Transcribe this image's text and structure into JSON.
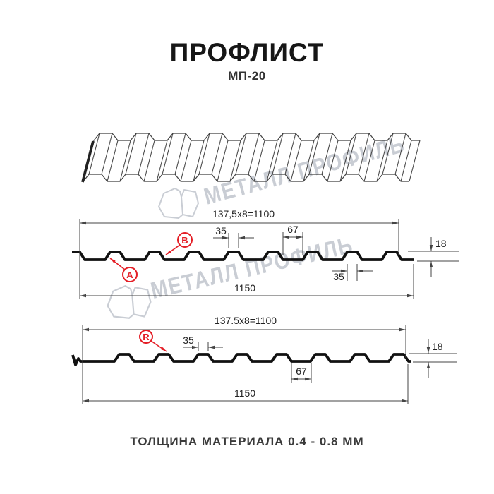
{
  "header": {
    "title": "ПРОФЛИСТ",
    "subtitle": "МП-20"
  },
  "watermark": {
    "text": "МЕТАЛЛ ПРОФИЛЬ",
    "color": "#c9cdd4"
  },
  "footer": {
    "thickness_note": "ТОЛЩИНА МАТЕРИАЛА 0.4 - 0.8 ММ"
  },
  "colors": {
    "accent_red": "#e41e26",
    "dimension_line": "#444444",
    "profile_line": "#111111"
  },
  "profile_top": {
    "module_width": "137,5x8=1100",
    "crest_width": "35",
    "valley_width": "67",
    "height": "18",
    "crest_width_bottom": "35",
    "overall_width": "1150",
    "label_a": "A",
    "label_b": "B"
  },
  "profile_bottom": {
    "module_width": "137.5x8=1100",
    "crest_width": "35",
    "height": "18",
    "valley_width": "67",
    "overall_width": "1150",
    "label_r": "R"
  }
}
